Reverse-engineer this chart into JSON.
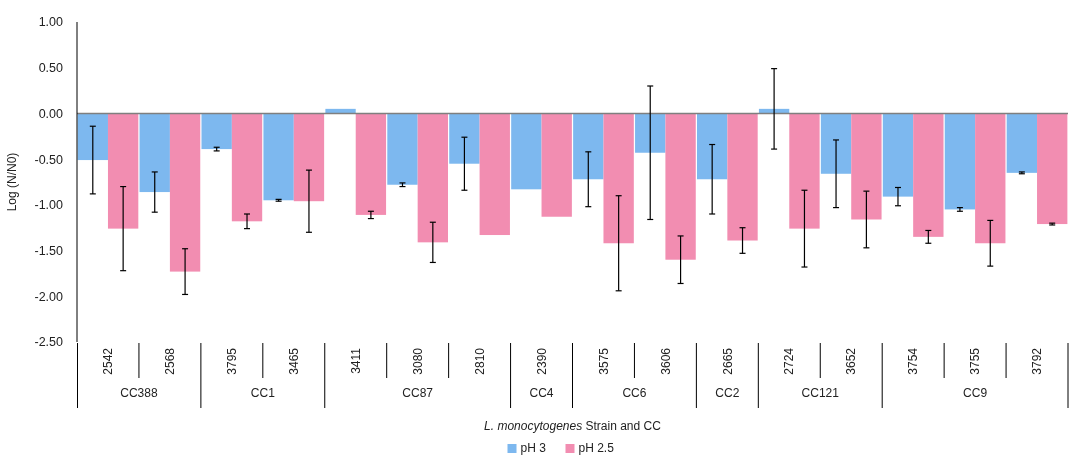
{
  "chart_data": {
    "type": "bar",
    "xlabel": "L. monocytogenes Strain and CC",
    "ylabel": "Log (N/N0)",
    "categories": [
      "2542",
      "2568",
      "3795",
      "3465",
      "3411",
      "3080",
      "2810",
      "2390",
      "3575",
      "3606",
      "2665",
      "2724",
      "3652",
      "3754",
      "3755",
      "3792"
    ],
    "series": [
      {
        "name": "pH 3",
        "color": "#7db8ef",
        "values": [
          -0.51,
          -0.86,
          -0.39,
          -0.95,
          0.05,
          -0.78,
          -0.55,
          -0.83,
          -0.72,
          -0.43,
          -0.72,
          0.05,
          -0.66,
          -0.91,
          -1.05,
          -0.65
        ],
        "errors": [
          0.37,
          0.22,
          0.02,
          0.01,
          null,
          0.02,
          0.29,
          null,
          0.3,
          0.73,
          0.38,
          0.44,
          0.37,
          0.1,
          0.02,
          0.01
        ]
      },
      {
        "name": "pH 2.5",
        "color": "#f28db1",
        "values": [
          -1.26,
          -1.73,
          -1.18,
          -0.96,
          -1.11,
          -1.41,
          -1.33,
          -1.13,
          -1.42,
          -1.6,
          -1.39,
          -1.26,
          -1.16,
          -1.35,
          -1.42,
          -1.21
        ],
        "errors": [
          0.46,
          0.25,
          0.08,
          0.34,
          0.04,
          0.22,
          null,
          null,
          0.52,
          0.26,
          0.14,
          0.42,
          0.31,
          0.07,
          0.25,
          0.01
        ]
      }
    ],
    "annotations": [
      "CC388",
      "CC1",
      "CC87",
      "CC4",
      "CC6",
      "CC2",
      "CC121",
      "CC9"
    ],
    "ref_lines": [
      {
        "axis": "y",
        "value": 0,
        "color": "#7f7f7f"
      }
    ],
    "ylim": [
      -2.5,
      1
    ],
    "yticks": [
      {
        "value": -2.5,
        "label": "-2.50"
      },
      {
        "value": -2,
        "label": "-2.00"
      },
      {
        "value": -1.5,
        "label": "-1.50"
      },
      {
        "value": -1,
        "label": "-1.00"
      },
      {
        "value": -0.5,
        "label": "-0.50"
      },
      {
        "value": 0,
        "label": "0.00"
      },
      {
        "value": 0.5,
        "label": "0.50"
      },
      {
        "value": 1,
        "label": "1.00"
      }
    ],
    "grid": false,
    "legend": "bottom"
  }
}
